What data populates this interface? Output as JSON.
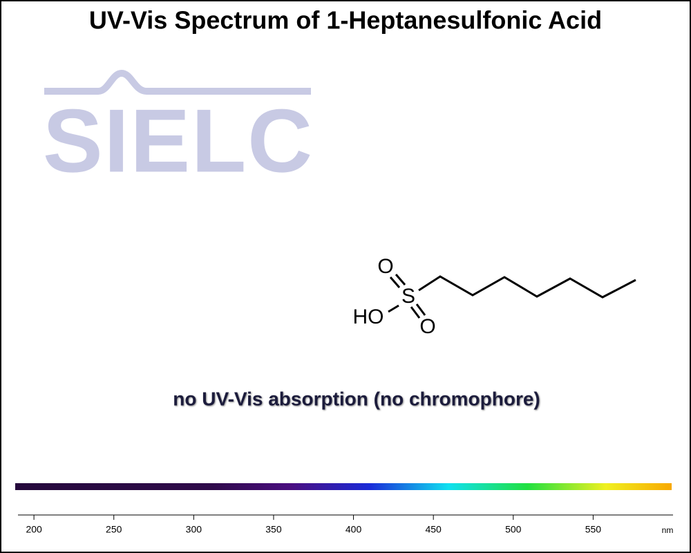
{
  "chart_data": {
    "type": "spectrum",
    "title": "UV-Vis Spectrum of 1-Heptanesulfonic Acid",
    "logo": "SIELC",
    "annotation": "no UV-Vis absorption (no chromophore)",
    "structure_labels": [
      "O",
      "S",
      "HO",
      "O"
    ],
    "xlabel": "nm",
    "xlim": [
      190,
      600
    ],
    "xticks": [
      200,
      250,
      300,
      350,
      400,
      450,
      500,
      550
    ]
  }
}
